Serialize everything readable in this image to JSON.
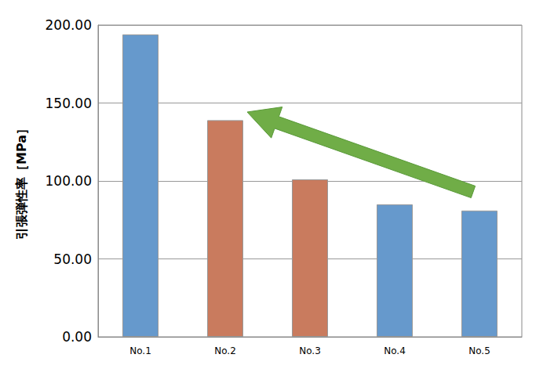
{
  "chart_data": {
    "type": "bar",
    "ylabel": "引張弾性率［MPa］",
    "categories": [
      "No.1",
      "No.2",
      "No.3",
      "No.4",
      "No.5"
    ],
    "values": [
      194,
      139,
      101,
      85,
      81
    ],
    "colors": [
      "#6699cc",
      "#c97b5e",
      "#c97b5e",
      "#6699cc",
      "#6699cc"
    ],
    "ylim": [
      0,
      200
    ],
    "yticks": [
      {
        "value": 0,
        "label": "0.00"
      },
      {
        "value": 50,
        "label": "50.00"
      },
      {
        "value": 100,
        "label": "100.00"
      },
      {
        "value": 150,
        "label": "150.00"
      },
      {
        "value": 200,
        "label": "200.00"
      }
    ],
    "grid": true
  }
}
